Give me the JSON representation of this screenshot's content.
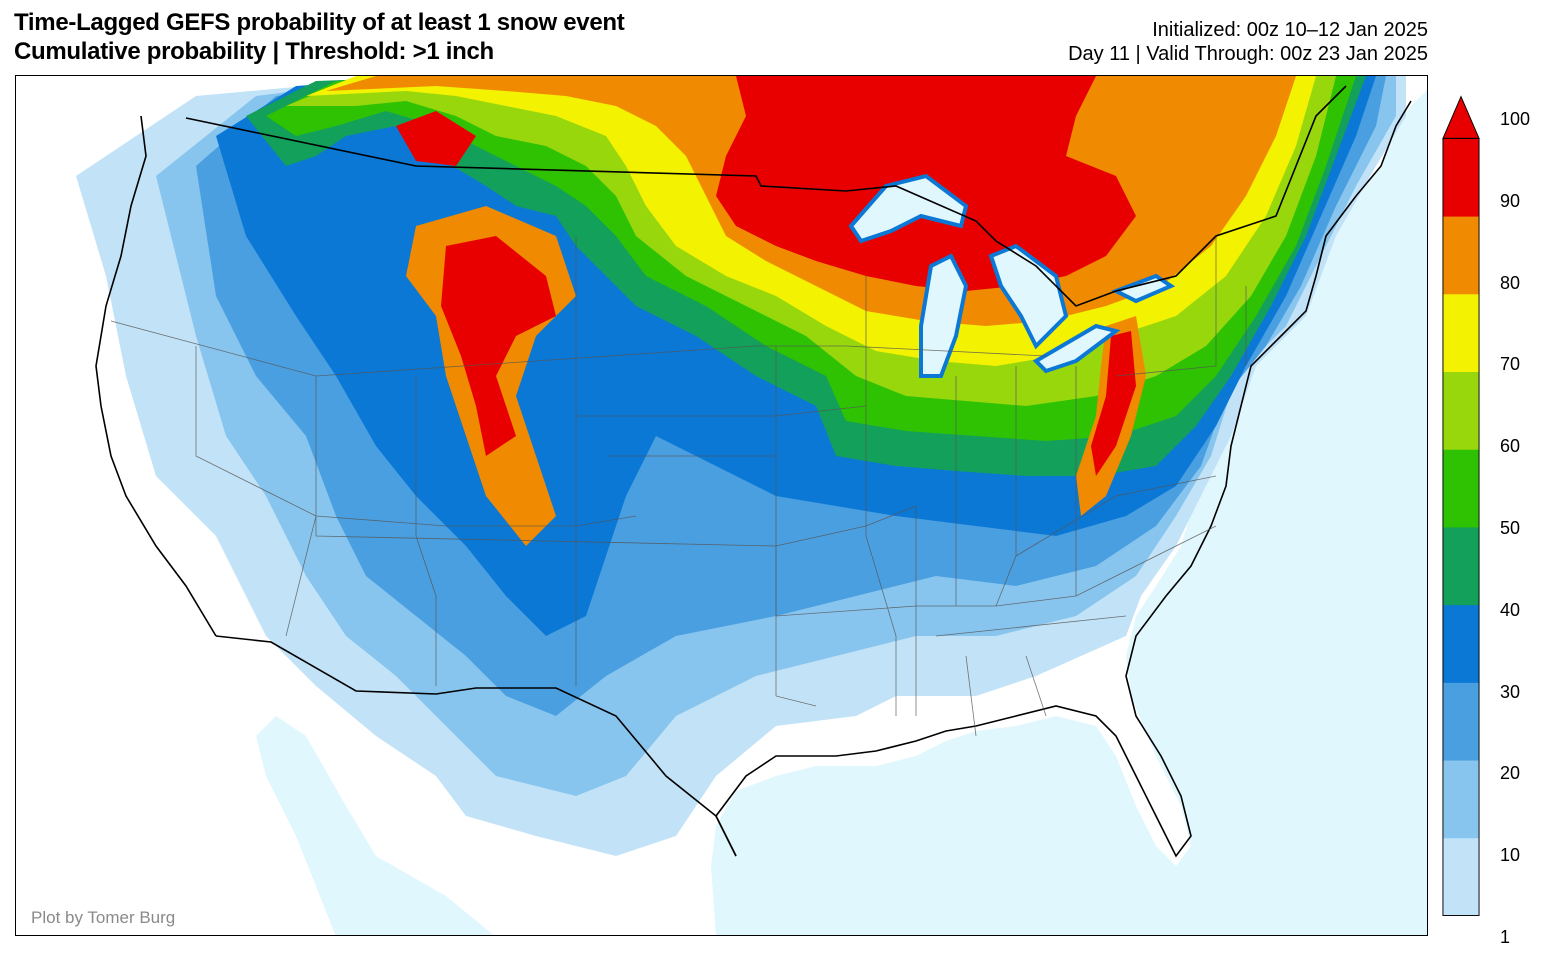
{
  "title": {
    "line1": "Time-Lagged GEFS probability of at least 1 snow event",
    "line2": "Cumulative probability | Threshold: >1 inch"
  },
  "info": {
    "line1": "Initialized: 00z 10–12 Jan 2025",
    "line2": "Day 11 | Valid Through: 00z 23 Jan 2025"
  },
  "credit": "Plot by Tomer Burg",
  "colorbar": {
    "levels": [
      "1",
      "10",
      "20",
      "30",
      "40",
      "50",
      "60",
      "70",
      "80",
      "90",
      "100"
    ],
    "colors": [
      "#c2e3f7",
      "#88c5ee",
      "#4a9fe1",
      "#0b78d6",
      "#13a05a",
      "#2fc203",
      "#99d70d",
      "#f2f201",
      "#f08a00",
      "#e80000"
    ],
    "extend": "max"
  },
  "map": {
    "ocean_color": "#e0f7fd",
    "land_color": "#ffffff",
    "extent": "CONUS"
  }
}
